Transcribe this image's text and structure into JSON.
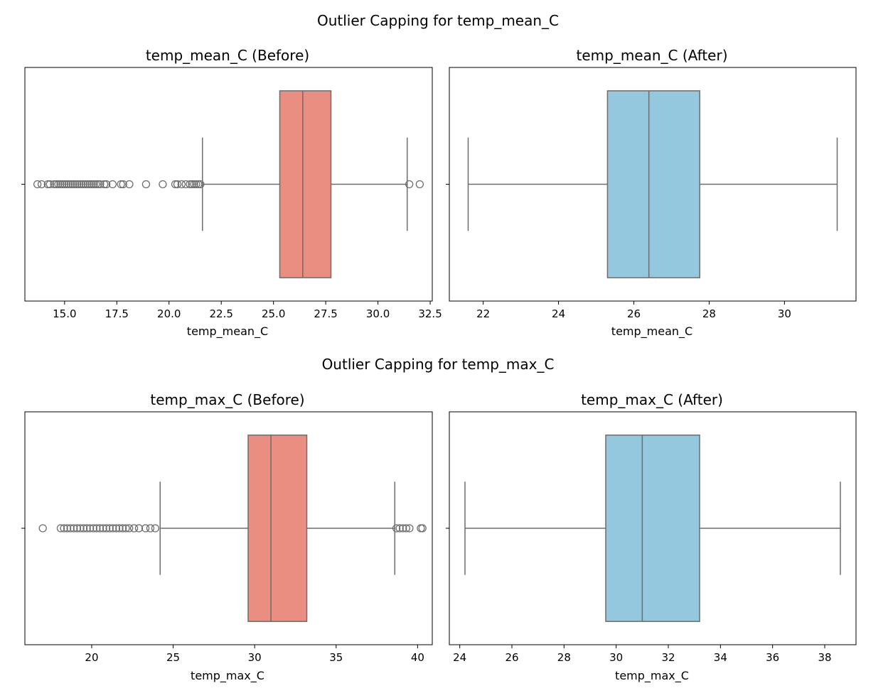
{
  "colors": {
    "before_box": "#e98e81",
    "after_box": "#94c8de",
    "line": "#6d6d6d",
    "axis": "#000000"
  },
  "chart_data": [
    {
      "suptitle": "Outlier Capping for temp_mean_C",
      "panels": [
        {
          "type": "box",
          "title": "temp_mean_C (Before)",
          "xlabel": "temp_mean_C",
          "xlim": [
            13.1,
            32.6
          ],
          "xticks": [
            15.0,
            17.5,
            20.0,
            22.5,
            25.0,
            27.5,
            30.0,
            32.5
          ],
          "xtick_labels": [
            "15.0",
            "17.5",
            "20.0",
            "22.5",
            "25.0",
            "27.5",
            "30.0",
            "32.5"
          ],
          "box": {
            "q1": 25.3,
            "median": 26.4,
            "q3": 27.75,
            "whisker_low": 21.6,
            "whisker_high": 31.4
          },
          "outliers": [
            13.7,
            13.9,
            14.2,
            14.3,
            14.5,
            14.6,
            14.7,
            14.8,
            14.9,
            15.0,
            15.1,
            15.2,
            15.3,
            15.4,
            15.5,
            15.6,
            15.7,
            15.8,
            15.9,
            16.0,
            16.1,
            16.2,
            16.3,
            16.4,
            16.5,
            16.6,
            16.7,
            16.9,
            17.0,
            17.3,
            17.7,
            17.8,
            18.1,
            18.9,
            19.7,
            20.3,
            20.4,
            20.6,
            20.8,
            21.0,
            21.1,
            21.2,
            21.3,
            21.4,
            21.5,
            31.5,
            32.0
          ],
          "color": "before_box"
        },
        {
          "type": "box",
          "title": "temp_mean_C (After)",
          "xlabel": "temp_mean_C",
          "xlim": [
            21.1,
            31.9
          ],
          "xticks": [
            22,
            24,
            26,
            28,
            30
          ],
          "xtick_labels": [
            "22",
            "24",
            "26",
            "28",
            "30"
          ],
          "box": {
            "q1": 25.3,
            "median": 26.4,
            "q3": 27.75,
            "whisker_low": 21.6,
            "whisker_high": 31.4
          },
          "outliers": [],
          "color": "after_box"
        }
      ]
    },
    {
      "suptitle": "Outlier Capping for temp_max_C",
      "panels": [
        {
          "type": "box",
          "title": "temp_max_C (Before)",
          "xlabel": "temp_max_C",
          "xlim": [
            15.9,
            40.9
          ],
          "xticks": [
            20,
            25,
            30,
            35,
            40
          ],
          "xtick_labels": [
            "20",
            "25",
            "30",
            "35",
            "40"
          ],
          "box": {
            "q1": 29.6,
            "median": 31.0,
            "q3": 33.2,
            "whisker_low": 24.2,
            "whisker_high": 38.6
          },
          "outliers": [
            17.0,
            18.1,
            18.3,
            18.5,
            18.7,
            18.9,
            19.1,
            19.3,
            19.5,
            19.7,
            19.9,
            20.1,
            20.3,
            20.5,
            20.7,
            20.9,
            21.1,
            21.3,
            21.5,
            21.7,
            21.9,
            22.1,
            22.3,
            22.6,
            22.9,
            23.3,
            23.6,
            23.9,
            38.7,
            38.9,
            39.1,
            39.3,
            39.5,
            40.2,
            40.3
          ],
          "color": "before_box"
        },
        {
          "type": "box",
          "title": "temp_max_C (After)",
          "xlabel": "temp_max_C",
          "xlim": [
            23.6,
            39.2
          ],
          "xticks": [
            24,
            26,
            28,
            30,
            32,
            34,
            36,
            38
          ],
          "xtick_labels": [
            "24",
            "26",
            "28",
            "30",
            "32",
            "34",
            "36",
            "38"
          ],
          "box": {
            "q1": 29.6,
            "median": 31.0,
            "q3": 33.2,
            "whisker_low": 24.2,
            "whisker_high": 38.6
          },
          "outliers": [],
          "color": "after_box"
        }
      ]
    }
  ]
}
